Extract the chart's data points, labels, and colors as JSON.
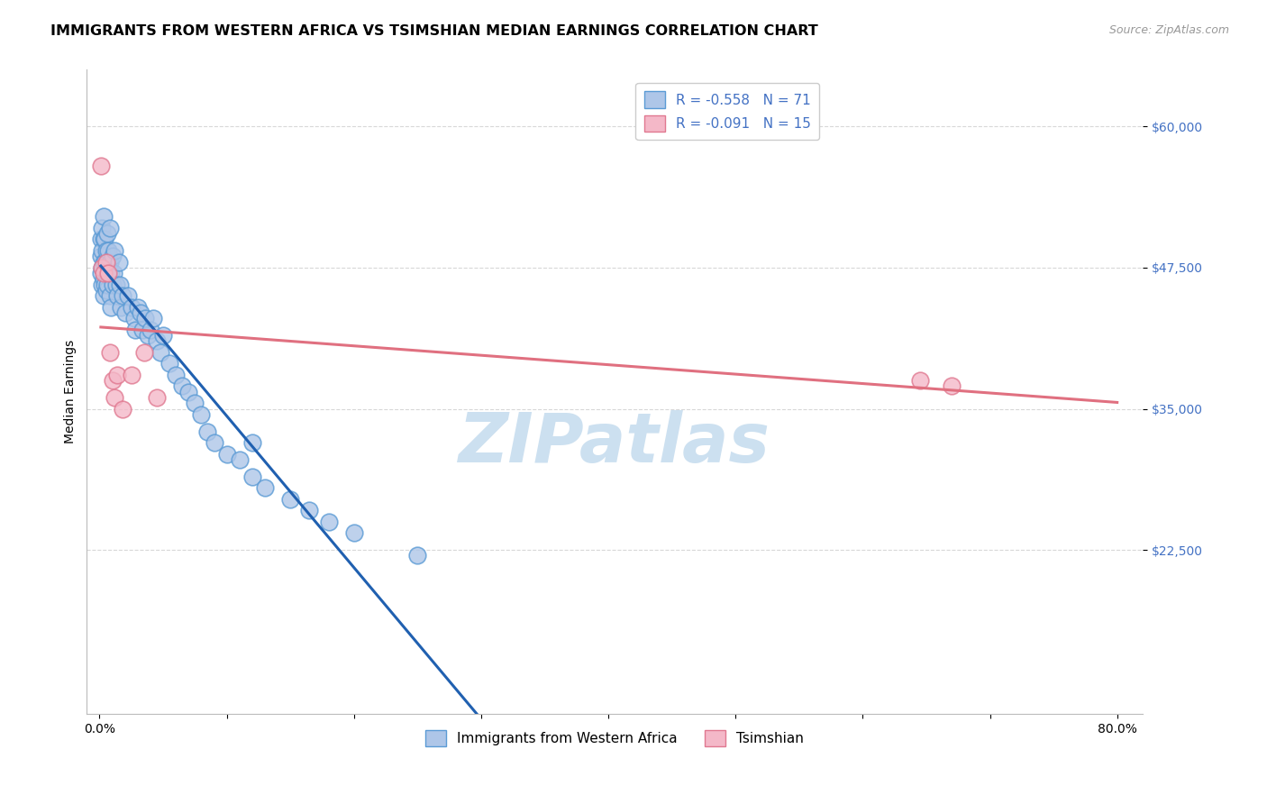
{
  "title": "IMMIGRANTS FROM WESTERN AFRICA VS TSIMSHIAN MEDIAN EARNINGS CORRELATION CHART",
  "source": "Source: ZipAtlas.com",
  "ylabel": "Median Earnings",
  "xlabel": "",
  "xlim": [
    -0.01,
    0.82
  ],
  "ylim": [
    8000,
    65000
  ],
  "yticks": [
    22500,
    35000,
    47500,
    60000
  ],
  "ytick_labels": [
    "$22,500",
    "$35,000",
    "$47,500",
    "$60,000"
  ],
  "xticks": [
    0.0,
    0.1,
    0.2,
    0.3,
    0.4,
    0.5,
    0.6,
    0.7,
    0.8
  ],
  "xtick_labels": [
    "0.0%",
    "",
    "",
    "",
    "",
    "",
    "",
    "",
    "80.0%"
  ],
  "blue_color": "#aec6e8",
  "blue_edge_color": "#5b9bd5",
  "pink_color": "#f4b8c8",
  "pink_edge_color": "#e07890",
  "R_blue": -0.558,
  "N_blue": 71,
  "R_pink": -0.091,
  "N_pink": 15,
  "blue_x": [
    0.001,
    0.001,
    0.001,
    0.002,
    0.002,
    0.002,
    0.002,
    0.003,
    0.003,
    0.003,
    0.003,
    0.003,
    0.004,
    0.004,
    0.004,
    0.005,
    0.005,
    0.005,
    0.006,
    0.006,
    0.006,
    0.007,
    0.007,
    0.008,
    0.008,
    0.008,
    0.009,
    0.009,
    0.01,
    0.01,
    0.011,
    0.012,
    0.013,
    0.014,
    0.015,
    0.016,
    0.017,
    0.018,
    0.02,
    0.022,
    0.025,
    0.027,
    0.028,
    0.03,
    0.032,
    0.034,
    0.036,
    0.038,
    0.04,
    0.042,
    0.045,
    0.048,
    0.05,
    0.055,
    0.06,
    0.065,
    0.07,
    0.075,
    0.08,
    0.085,
    0.09,
    0.1,
    0.11,
    0.12,
    0.13,
    0.15,
    0.165,
    0.18,
    0.2,
    0.25,
    0.12
  ],
  "blue_y": [
    48500,
    50000,
    47000,
    51000,
    49000,
    47500,
    46000,
    52000,
    50000,
    48000,
    46500,
    45000,
    50000,
    48000,
    46000,
    49000,
    47000,
    45500,
    50500,
    48000,
    46000,
    49000,
    47000,
    51000,
    48000,
    45000,
    47000,
    44000,
    48500,
    46000,
    47000,
    49000,
    46000,
    45000,
    48000,
    46000,
    44000,
    45000,
    43500,
    45000,
    44000,
    43000,
    42000,
    44000,
    43500,
    42000,
    43000,
    41500,
    42000,
    43000,
    41000,
    40000,
    41500,
    39000,
    38000,
    37000,
    36500,
    35500,
    34500,
    33000,
    32000,
    31000,
    30500,
    29000,
    28000,
    27000,
    26000,
    25000,
    24000,
    22000,
    32000
  ],
  "pink_x": [
    0.001,
    0.002,
    0.003,
    0.005,
    0.007,
    0.008,
    0.01,
    0.012,
    0.014,
    0.018,
    0.025,
    0.035,
    0.045,
    0.645,
    0.67
  ],
  "pink_y": [
    56500,
    47500,
    47000,
    48000,
    47000,
    40000,
    37500,
    36000,
    38000,
    35000,
    38000,
    40000,
    36000,
    37500,
    37000
  ],
  "blue_line_start_x": 0.001,
  "blue_line_end_x": 0.8,
  "blue_line_solid_end": 0.35,
  "pink_line_start_x": 0.001,
  "pink_line_end_x": 0.8,
  "watermark": "ZIPatlas",
  "watermark_color": "#cce0f0",
  "grid_color": "#d8d8d8",
  "title_fontsize": 11.5,
  "axis_label_fontsize": 10,
  "tick_label_fontsize": 10,
  "legend_fontsize": 11,
  "legend_label1": "Immigrants from Western Africa",
  "legend_label2": "Tsimshian",
  "source_fontsize": 9,
  "accent_color": "#4472c4"
}
